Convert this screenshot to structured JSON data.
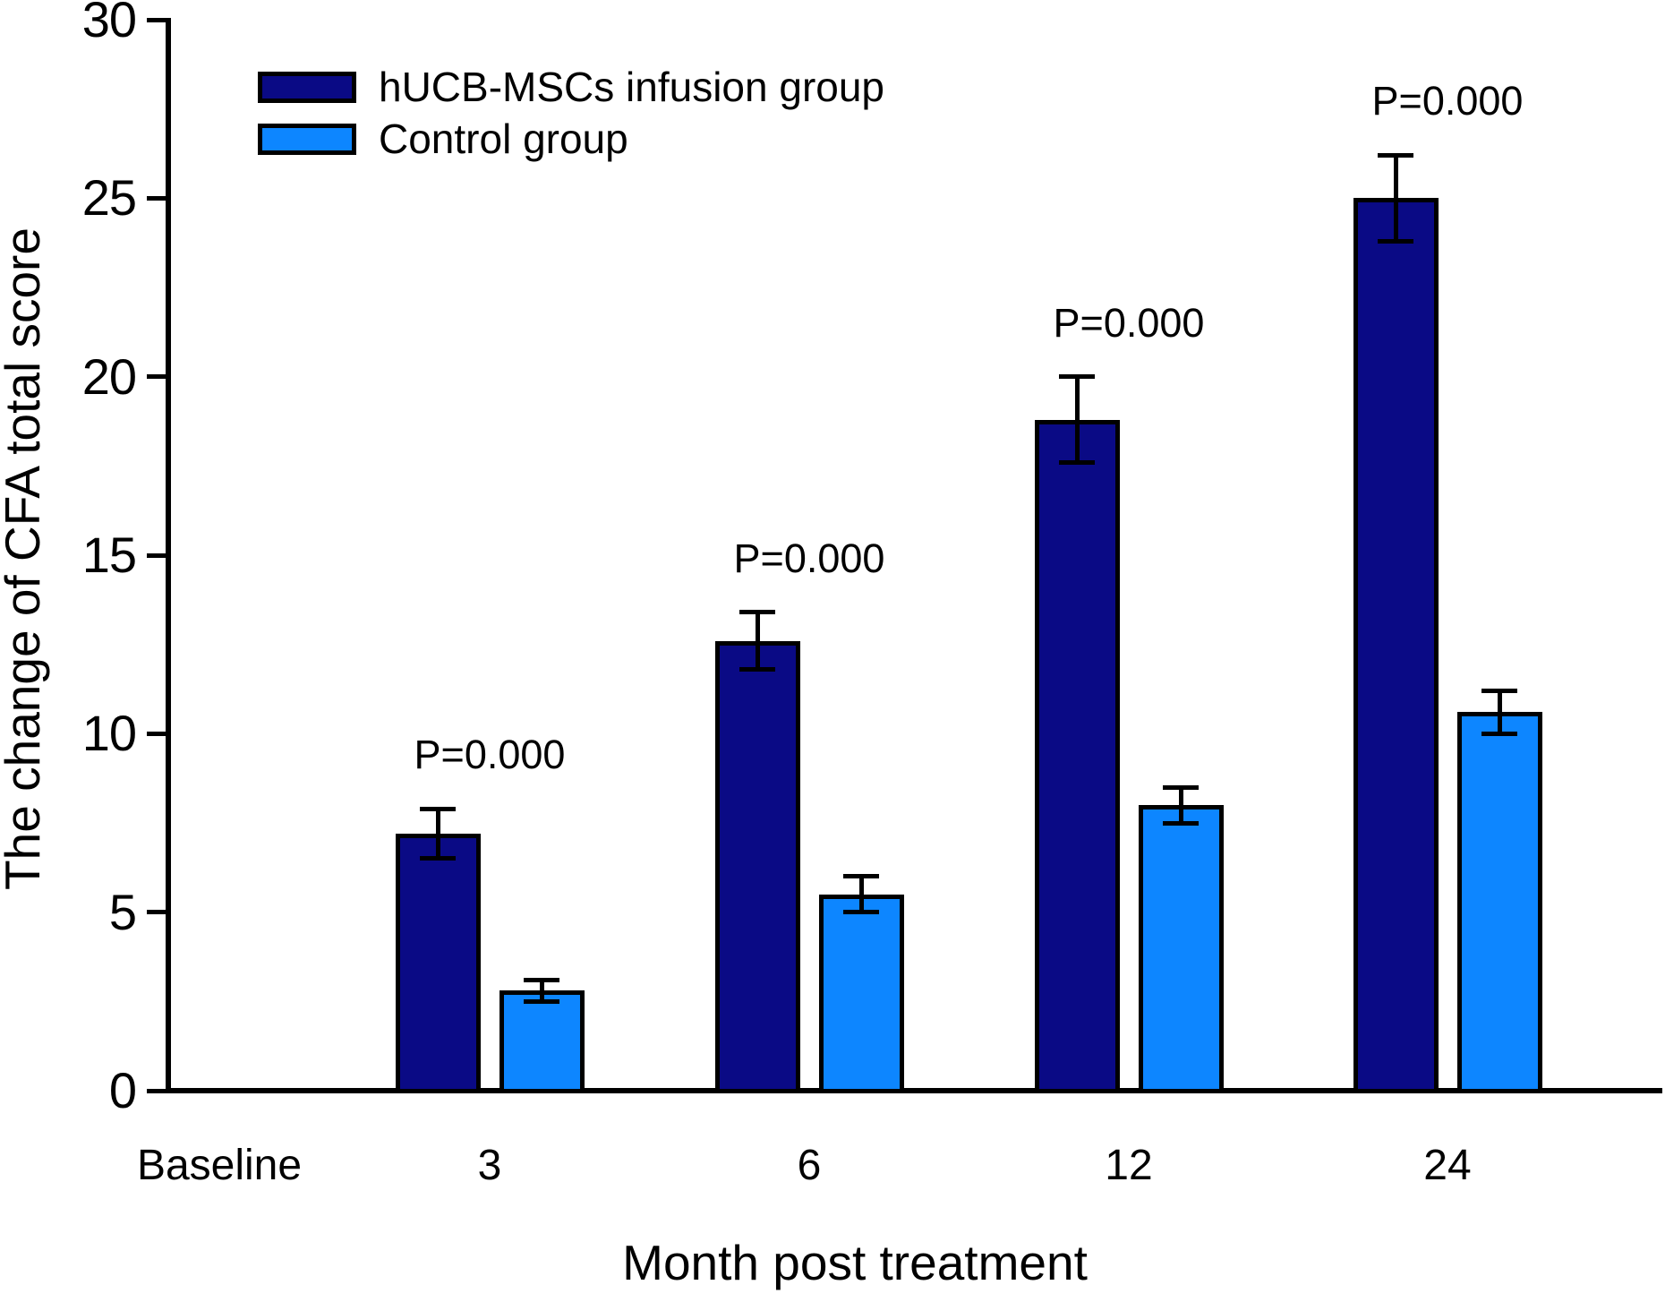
{
  "figure_colors": {
    "series_dark": "#0a0a85",
    "series_light": "#0d86ff",
    "axis": "#000000",
    "background": "#ffffff"
  },
  "chart_data": {
    "type": "bar",
    "title": "",
    "xlabel": "Month post treatment",
    "ylabel": "The change of CFA total score",
    "categories": [
      "Baseline",
      "3",
      "6",
      "12",
      "24"
    ],
    "y_ticks": [
      "0",
      "5",
      "10",
      "15",
      "20",
      "25",
      "30"
    ],
    "ylim": [
      0,
      30
    ],
    "grid": false,
    "legend_position": "upper-left",
    "series": [
      {
        "name": "hUCB-MSCs infusion group",
        "color": "#0a0a85",
        "values": [
          null,
          7.2,
          12.6,
          18.8,
          25.0
        ],
        "errors": [
          null,
          0.7,
          0.8,
          1.2,
          1.2
        ]
      },
      {
        "name": "Control group",
        "color": "#0d86ff",
        "values": [
          null,
          2.8,
          5.5,
          8.0,
          10.6
        ],
        "errors": [
          null,
          0.3,
          0.5,
          0.5,
          0.6
        ]
      }
    ],
    "annotations": [
      {
        "category": "3",
        "text": "P=0.000"
      },
      {
        "category": "6",
        "text": "P=0.000"
      },
      {
        "category": "12",
        "text": "P=0.000"
      },
      {
        "category": "24",
        "text": "P=0.000"
      }
    ]
  }
}
